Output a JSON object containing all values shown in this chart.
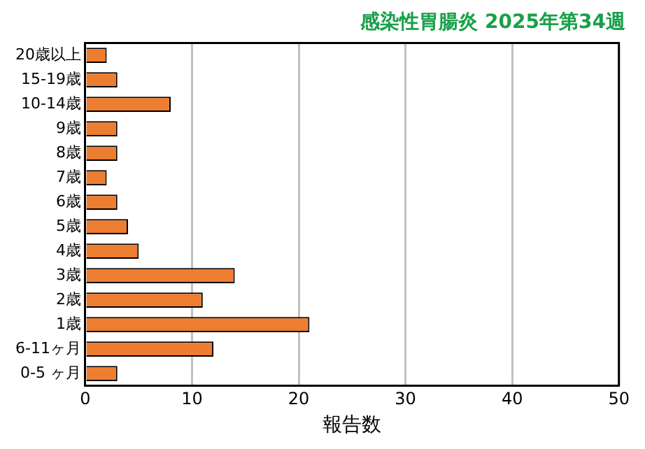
{
  "chart_data": {
    "type": "bar",
    "orientation": "horizontal",
    "title": "感染性胃腸炎 2025年第34週",
    "xlabel": "報告数",
    "categories": [
      "20歳以上",
      "15-19歳",
      "10-14歳",
      "9歳",
      "8歳",
      "7歳",
      "6歳",
      "5歳",
      "4歳",
      "3歳",
      "2歳",
      "1歳",
      "6-11ヶ月",
      "0-5 ヶ月"
    ],
    "values": [
      2,
      3,
      8,
      3,
      3,
      2,
      3,
      4,
      5,
      14,
      11,
      21,
      12,
      3
    ],
    "color": "#ed7d31",
    "xlim": [
      0,
      50
    ],
    "xticks": [
      0,
      10,
      20,
      30,
      40,
      50
    ],
    "grid": "x",
    "legend": false
  }
}
